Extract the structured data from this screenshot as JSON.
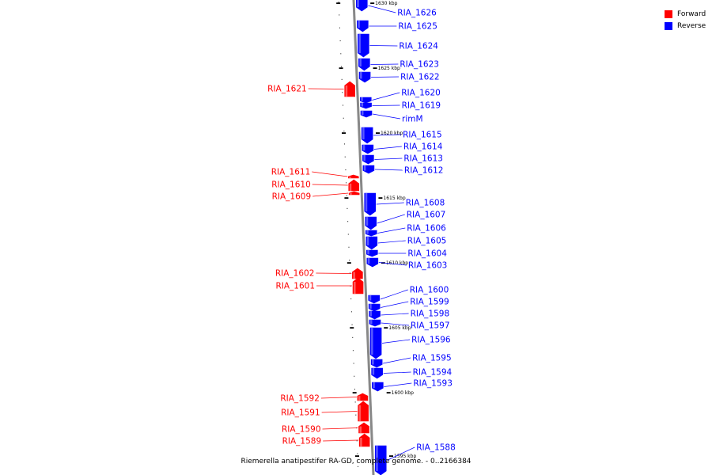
{
  "caption": "Riemerella anatipestifer RA-GD, complete genome. - 0..2166384",
  "colors": {
    "forward": "#ff0000",
    "reverse": "#0000ff",
    "backbone": "#888888"
  },
  "legend": [
    {
      "label": "Forward",
      "color": "#ff0000"
    },
    {
      "label": "Reverse",
      "color": "#0000ff"
    }
  ],
  "scale_marks": [
    "1630 kbp",
    "1625 kbp",
    "1620 kbp",
    "1615 kbp",
    "1610 kbp",
    "1605 kbp",
    "1600 kbp",
    "1595 kbp"
  ],
  "genes": [
    {
      "name": "RIA_1626",
      "strand": "reverse"
    },
    {
      "name": "RIA_1625",
      "strand": "reverse"
    },
    {
      "name": "RIA_1624",
      "strand": "reverse"
    },
    {
      "name": "RIA_1623",
      "strand": "reverse"
    },
    {
      "name": "RIA_1622",
      "strand": "reverse"
    },
    {
      "name": "RIA_1621",
      "strand": "forward"
    },
    {
      "name": "RIA_1620",
      "strand": "reverse"
    },
    {
      "name": "RIA_1619",
      "strand": "reverse"
    },
    {
      "name": "rimM",
      "strand": "reverse"
    },
    {
      "name": "RIA_1615",
      "strand": "reverse"
    },
    {
      "name": "RIA_1614",
      "strand": "reverse"
    },
    {
      "name": "RIA_1613",
      "strand": "reverse"
    },
    {
      "name": "RIA_1612",
      "strand": "reverse"
    },
    {
      "name": "RIA_1611",
      "strand": "forward"
    },
    {
      "name": "RIA_1610",
      "strand": "forward"
    },
    {
      "name": "RIA_1609",
      "strand": "forward"
    },
    {
      "name": "RIA_1608",
      "strand": "reverse"
    },
    {
      "name": "RIA_1607",
      "strand": "reverse"
    },
    {
      "name": "RIA_1606",
      "strand": "reverse"
    },
    {
      "name": "RIA_1605",
      "strand": "reverse"
    },
    {
      "name": "RIA_1604",
      "strand": "reverse"
    },
    {
      "name": "RIA_1603",
      "strand": "reverse"
    },
    {
      "name": "RIA_1602",
      "strand": "forward"
    },
    {
      "name": "RIA_1601",
      "strand": "forward"
    },
    {
      "name": "RIA_1600",
      "strand": "reverse"
    },
    {
      "name": "RIA_1599",
      "strand": "reverse"
    },
    {
      "name": "RIA_1598",
      "strand": "reverse"
    },
    {
      "name": "RIA_1597",
      "strand": "reverse"
    },
    {
      "name": "RIA_1596",
      "strand": "reverse"
    },
    {
      "name": "RIA_1595",
      "strand": "reverse"
    },
    {
      "name": "RIA_1594",
      "strand": "reverse"
    },
    {
      "name": "RIA_1593",
      "strand": "reverse"
    },
    {
      "name": "RIA_1592",
      "strand": "forward"
    },
    {
      "name": "RIA_1591",
      "strand": "forward"
    },
    {
      "name": "RIA_1590",
      "strand": "forward"
    },
    {
      "name": "RIA_1589",
      "strand": "forward"
    },
    {
      "name": "RIA_1588",
      "strand": "reverse"
    }
  ]
}
